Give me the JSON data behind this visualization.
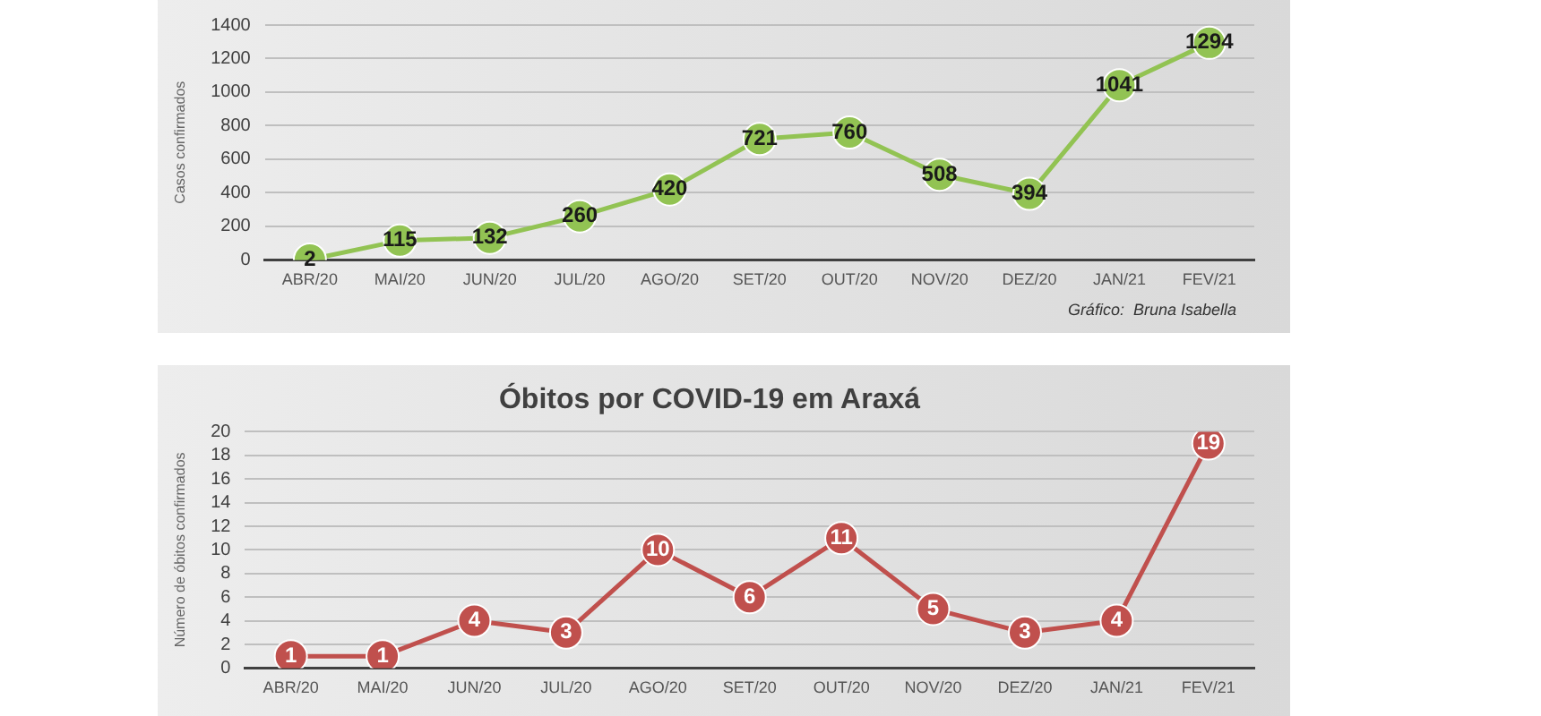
{
  "chart_data": [
    {
      "type": "line",
      "ylabel": "Casos confirmados",
      "categories": [
        "ABR/20",
        "MAI/20",
        "JUN/20",
        "JUL/20",
        "AGO/20",
        "SET/20",
        "OUT/20",
        "NOV/20",
        "DEZ/20",
        "JAN/21",
        "FEV/21"
      ],
      "series": [
        {
          "color": "#92c353",
          "values": [
            2,
            115,
            132,
            260,
            420,
            721,
            760,
            508,
            394,
            1041,
            1294
          ]
        }
      ],
      "ylim": [
        0,
        1400
      ],
      "yticks": [
        0,
        200,
        400,
        600,
        800,
        1000,
        1200,
        1400
      ],
      "grid": "y",
      "marker": "circle",
      "data_labels": true,
      "annotations": [
        "Gráfico:  Bruna Isabella"
      ]
    },
    {
      "type": "line",
      "title": "Óbitos por COVID-19 em Araxá",
      "ylabel": "Número de óbitos confirmados",
      "categories": [
        "ABR/20",
        "MAI/20",
        "JUN/20",
        "JUL/20",
        "AGO/20",
        "SET/20",
        "OUT/20",
        "NOV/20",
        "DEZ/20",
        "JAN/21",
        "FEV/21"
      ],
      "series": [
        {
          "color": "#c0504d",
          "values": [
            1,
            1,
            4,
            3,
            10,
            6,
            11,
            5,
            3,
            4,
            19
          ]
        }
      ],
      "ylim": [
        0,
        20
      ],
      "yticks": [
        0,
        2,
        4,
        6,
        8,
        10,
        12,
        14,
        16,
        18,
        20
      ],
      "grid": "y",
      "marker": "circle",
      "data_labels": true
    }
  ]
}
